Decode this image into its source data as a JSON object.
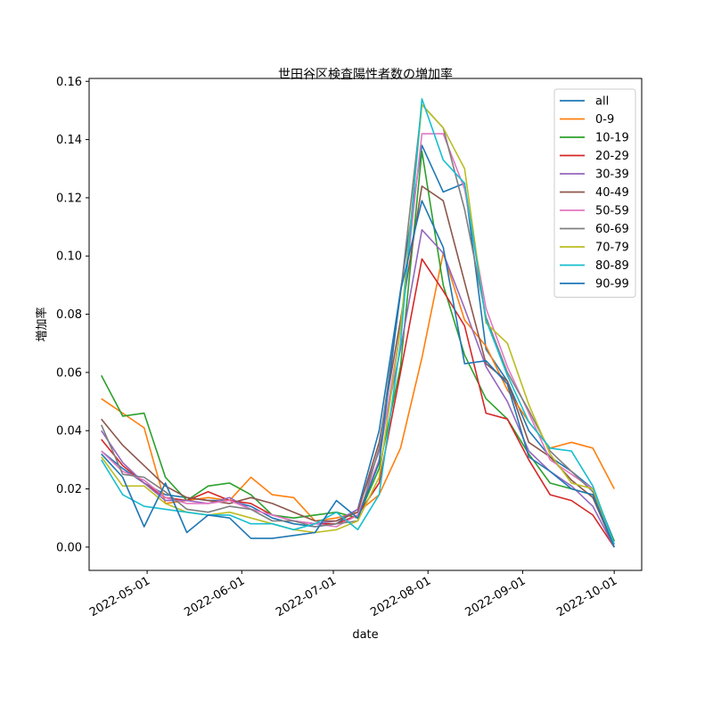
{
  "chart_data": {
    "type": "line",
    "title": "世田谷区検査陽性者数の増加率",
    "xlabel": "date",
    "ylabel": "増加率",
    "ylim": [
      -0.008,
      0.161
    ],
    "xlim": [
      "2022-04-12",
      "2022-10-10"
    ],
    "grid": false,
    "legend_position": "top-right",
    "x": [
      "2022-04-16",
      "2022-04-23",
      "2022-04-30",
      "2022-05-07",
      "2022-05-14",
      "2022-05-21",
      "2022-05-28",
      "2022-06-04",
      "2022-06-11",
      "2022-06-18",
      "2022-06-25",
      "2022-07-02",
      "2022-07-09",
      "2022-07-16",
      "2022-07-23",
      "2022-07-30",
      "2022-08-06",
      "2022-08-13",
      "2022-08-20",
      "2022-08-27",
      "2022-09-03",
      "2022-09-10",
      "2022-09-17",
      "2022-09-24",
      "2022-10-01"
    ],
    "yticks": [
      0.0,
      0.02,
      0.04,
      0.06,
      0.08,
      0.1,
      0.12,
      0.14,
      0.16
    ],
    "ytick_labels": [
      "0.00",
      "0.02",
      "0.04",
      "0.06",
      "0.08",
      "0.10",
      "0.12",
      "0.14",
      "0.16"
    ],
    "xticks": [
      "2022-05-01",
      "2022-06-01",
      "2022-07-01",
      "2022-08-01",
      "2022-09-01",
      "2022-10-01"
    ],
    "xtick_labels": [
      "2022-05-01",
      "2022-06-01",
      "2022-07-01",
      "2022-08-01",
      "2022-09-01",
      "2022-10-01"
    ],
    "series": [
      {
        "name": "all",
        "color": "#1f77b4",
        "values": [
          0.033,
          0.027,
          0.022,
          0.018,
          0.017,
          0.016,
          0.016,
          0.014,
          0.01,
          0.008,
          0.007,
          0.008,
          0.013,
          0.04,
          0.088,
          0.138,
          0.122,
          0.125,
          0.068,
          0.057,
          0.04,
          0.031,
          0.026,
          0.02,
          0.002
        ]
      },
      {
        "name": "0-9",
        "color": "#ff7f0e",
        "values": [
          0.051,
          0.046,
          0.041,
          0.015,
          0.016,
          0.017,
          0.016,
          0.024,
          0.018,
          0.017,
          0.009,
          0.01,
          0.012,
          0.018,
          0.034,
          0.065,
          0.101,
          0.078,
          0.069,
          0.054,
          0.043,
          0.034,
          0.036,
          0.034,
          0.02
        ]
      },
      {
        "name": "10-19",
        "color": "#2ca02c",
        "values": [
          0.059,
          0.045,
          0.046,
          0.024,
          0.016,
          0.021,
          0.022,
          0.018,
          0.011,
          0.01,
          0.011,
          0.012,
          0.01,
          0.027,
          0.062,
          0.136,
          0.09,
          0.066,
          0.051,
          0.044,
          0.032,
          0.022,
          0.02,
          0.018,
          0.002
        ]
      },
      {
        "name": "20-29",
        "color": "#d62728",
        "values": [
          0.037,
          0.028,
          0.022,
          0.017,
          0.016,
          0.019,
          0.016,
          0.015,
          0.011,
          0.009,
          0.008,
          0.008,
          0.011,
          0.022,
          0.06,
          0.099,
          0.088,
          0.076,
          0.046,
          0.044,
          0.03,
          0.018,
          0.016,
          0.011,
          0.0
        ]
      },
      {
        "name": "30-39",
        "color": "#9467bd",
        "values": [
          0.04,
          0.029,
          0.022,
          0.016,
          0.016,
          0.015,
          0.017,
          0.013,
          0.011,
          0.009,
          0.008,
          0.009,
          0.013,
          0.033,
          0.068,
          0.109,
          0.101,
          0.082,
          0.062,
          0.05,
          0.033,
          0.026,
          0.021,
          0.014,
          0.0
        ]
      },
      {
        "name": "40-49",
        "color": "#8c564b",
        "values": [
          0.044,
          0.035,
          0.028,
          0.021,
          0.017,
          0.016,
          0.015,
          0.017,
          0.015,
          0.012,
          0.009,
          0.009,
          0.012,
          0.036,
          0.078,
          0.124,
          0.119,
          0.091,
          0.063,
          0.057,
          0.036,
          0.031,
          0.023,
          0.017,
          0.0
        ]
      },
      {
        "name": "50-59",
        "color": "#e377c2",
        "values": [
          0.033,
          0.026,
          0.023,
          0.017,
          0.015,
          0.015,
          0.016,
          0.013,
          0.011,
          0.009,
          0.008,
          0.007,
          0.011,
          0.03,
          0.075,
          0.142,
          0.142,
          0.123,
          0.082,
          0.062,
          0.046,
          0.03,
          0.025,
          0.02,
          0.001
        ]
      },
      {
        "name": "60-69",
        "color": "#7f7f7f",
        "values": [
          0.042,
          0.025,
          0.024,
          0.019,
          0.013,
          0.012,
          0.014,
          0.013,
          0.009,
          0.009,
          0.007,
          0.008,
          0.009,
          0.034,
          0.087,
          0.152,
          0.144,
          0.116,
          0.079,
          0.06,
          0.047,
          0.033,
          0.026,
          0.019,
          0.0
        ]
      },
      {
        "name": "70-79",
        "color": "#bcbd22",
        "values": [
          0.031,
          0.021,
          0.021,
          0.015,
          0.012,
          0.011,
          0.012,
          0.01,
          0.008,
          0.006,
          0.005,
          0.006,
          0.009,
          0.024,
          0.075,
          0.152,
          0.144,
          0.13,
          0.077,
          0.07,
          0.049,
          0.032,
          0.022,
          0.02,
          0.001
        ]
      },
      {
        "name": "80-89",
        "color": "#17becf",
        "values": [
          0.03,
          0.018,
          0.014,
          0.013,
          0.012,
          0.011,
          0.011,
          0.008,
          0.008,
          0.006,
          0.008,
          0.012,
          0.006,
          0.018,
          0.07,
          0.154,
          0.133,
          0.125,
          0.078,
          0.059,
          0.043,
          0.034,
          0.033,
          0.021,
          0.001
        ]
      },
      {
        "name": "90-99",
        "color": "#1f77b4",
        "values": [
          0.032,
          0.024,
          0.007,
          0.022,
          0.005,
          0.011,
          0.01,
          0.003,
          0.003,
          0.004,
          0.005,
          0.016,
          0.01,
          0.029,
          0.088,
          0.119,
          0.103,
          0.063,
          0.064,
          0.056,
          0.031,
          0.026,
          0.02,
          0.018,
          0.0
        ]
      }
    ]
  }
}
